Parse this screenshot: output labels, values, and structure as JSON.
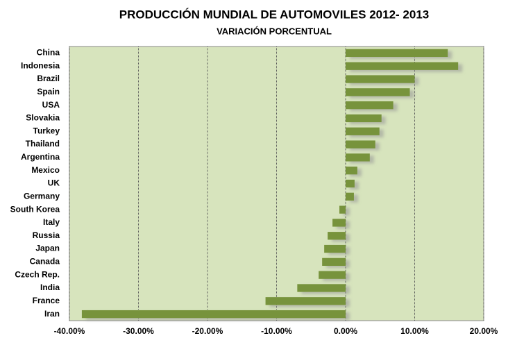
{
  "chart_data": {
    "type": "barh",
    "title": "PRODUCCIÓN MUNDIAL  DE AUTOMOVILES  2012- 2013",
    "subtitle": "VARIACIÓN PORCENTUAL",
    "categories": [
      "China",
      "Indonesia",
      "Brazil",
      "Spain",
      "USA",
      "Slovakia",
      "Turkey",
      "Thailand",
      "Argentina",
      "Mexico",
      "UK",
      "Germany",
      "South Korea",
      "Italy",
      "Russia",
      "Japan",
      "Canada",
      "Czech Rep.",
      "India",
      "France",
      "Iran"
    ],
    "values": [
      14.8,
      16.3,
      10.0,
      9.3,
      6.9,
      5.2,
      4.9,
      4.3,
      3.5,
      1.7,
      1.3,
      1.2,
      -0.9,
      -1.9,
      -2.6,
      -3.1,
      -3.4,
      -3.9,
      -7.0,
      -11.6,
      -38.2
    ],
    "color": "#77933c",
    "xlim": [
      -40,
      20
    ],
    "xticks": [
      {
        "value": -40,
        "label": "-40.00%"
      },
      {
        "value": -30,
        "label": "-30.00%"
      },
      {
        "value": -20,
        "label": "-20.00%"
      },
      {
        "value": -10,
        "label": "-10.00%"
      },
      {
        "value": 0,
        "label": "0.00%"
      },
      {
        "value": 10,
        "label": "10.00%"
      },
      {
        "value": 20,
        "label": "20.00%"
      }
    ],
    "grid": true
  }
}
